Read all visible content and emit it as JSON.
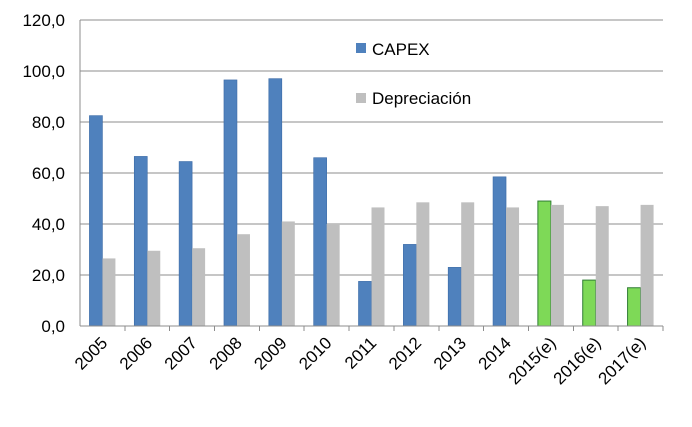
{
  "chart_data": {
    "type": "bar",
    "title": "",
    "xlabel": "",
    "ylabel": "",
    "ylim": [
      0,
      120
    ],
    "yticks": [
      0,
      20,
      40,
      60,
      80,
      100,
      120
    ],
    "ytick_labels": [
      "0,0",
      "20,0",
      "40,0",
      "60,0",
      "80,0",
      "100,0",
      "120,0"
    ],
    "grid": true,
    "legend_position": "top-center",
    "categories": [
      "2005",
      "2006",
      "2007",
      "2008",
      "2009",
      "2010",
      "2011",
      "2012",
      "2013",
      "2014",
      "2015(e)",
      "2016(e)",
      "2017(e)"
    ],
    "series": [
      {
        "name": "CAPEX",
        "color": "#4f81bd",
        "estimate_color": "#7ed957",
        "values": [
          82.5,
          66.5,
          64.5,
          96.5,
          97,
          66,
          17.5,
          32,
          23,
          58.5,
          49,
          18,
          15
        ]
      },
      {
        "name": "Depreciación",
        "color": "#bfbfbf",
        "values": [
          26.5,
          29.5,
          30.5,
          36,
          41,
          40,
          46.5,
          48.5,
          48.5,
          46.5,
          47.5,
          47,
          47.5
        ]
      }
    ],
    "estimated_from_index": 10
  }
}
